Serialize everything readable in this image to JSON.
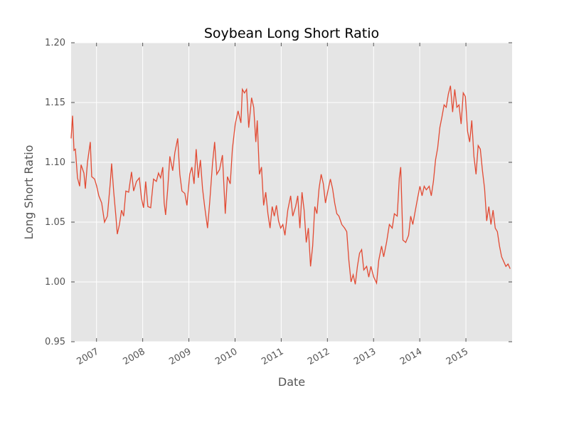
{
  "chart_data": {
    "type": "line",
    "title": "Soybean Long Short Ratio",
    "x_label": "Date",
    "y_label": "Long Short Ratio",
    "color": "#e24a33",
    "grid": true,
    "xlim": [
      2006.45,
      2016.0
    ],
    "xticks": [
      2007,
      2008,
      2009,
      2010,
      2011,
      2012,
      2013,
      2014,
      2015
    ],
    "ylim": [
      0.95,
      1.2
    ],
    "yticks": [
      0.95,
      {
        "value": 1.0,
        "label": "1.00"
      },
      1.05,
      {
        "value": 1.1,
        "label": "1.10"
      },
      1.15,
      {
        "value": 1.2,
        "label": "1.20"
      }
    ],
    "x": [
      2006.45,
      2006.481,
      2006.512,
      2006.542,
      2006.588,
      2006.635,
      2006.665,
      2006.727,
      2006.758,
      2006.804,
      2006.865,
      2006.896,
      2006.958,
      2007.004,
      2007.05,
      2007.112,
      2007.173,
      2007.235,
      2007.296,
      2007.327,
      2007.373,
      2007.419,
      2007.45,
      2007.496,
      2007.542,
      2007.588,
      2007.635,
      2007.696,
      2007.758,
      2007.804,
      2007.865,
      2007.927,
      2007.973,
      2008.019,
      2008.065,
      2008.112,
      2008.173,
      2008.235,
      2008.296,
      2008.342,
      2008.388,
      2008.435,
      2008.465,
      2008.496,
      2008.542,
      2008.588,
      2008.65,
      2008.696,
      2008.758,
      2008.804,
      2008.85,
      2008.912,
      2008.958,
      2009.019,
      2009.065,
      2009.112,
      2009.158,
      2009.204,
      2009.25,
      2009.296,
      2009.342,
      2009.404,
      2009.45,
      2009.512,
      2009.558,
      2009.604,
      2009.665,
      2009.727,
      2009.788,
      2009.835,
      2009.896,
      2009.942,
      2010.004,
      2010.065,
      2010.127,
      2010.158,
      2010.204,
      2010.25,
      2010.296,
      2010.358,
      2010.404,
      2010.45,
      2010.481,
      2010.527,
      2010.573,
      2010.619,
      2010.665,
      2010.712,
      2010.758,
      2010.804,
      2010.85,
      2010.896,
      2010.942,
      2010.988,
      2011.035,
      2011.081,
      2011.142,
      2011.204,
      2011.25,
      2011.312,
      2011.358,
      2011.404,
      2011.45,
      2011.496,
      2011.542,
      2011.588,
      2011.635,
      2011.681,
      2011.727,
      2011.773,
      2011.819,
      2011.865,
      2011.912,
      2011.958,
      2012.004,
      2012.065,
      2012.112,
      2012.158,
      2012.204,
      2012.25,
      2012.312,
      2012.373,
      2012.419,
      2012.465,
      2012.512,
      2012.558,
      2012.604,
      2012.65,
      2012.696,
      2012.742,
      2012.788,
      2012.85,
      2012.896,
      2012.942,
      2013.004,
      2013.065,
      2013.112,
      2013.173,
      2013.219,
      2013.281,
      2013.342,
      2013.404,
      2013.45,
      2013.512,
      2013.558,
      2013.588,
      2013.635,
      2013.696,
      2013.758,
      2013.804,
      2013.85,
      2013.896,
      2013.958,
      2014.004,
      2014.05,
      2014.096,
      2014.142,
      2014.204,
      2014.25,
      2014.296,
      2014.342,
      2014.388,
      2014.435,
      2014.481,
      2014.527,
      2014.573,
      2014.619,
      2014.665,
      2014.712,
      2014.758,
      2014.804,
      2014.85,
      2014.896,
      2014.942,
      2014.988,
      2015.035,
      2015.081,
      2015.127,
      2015.173,
      2015.219,
      2015.265,
      2015.312,
      2015.358,
      2015.404,
      2015.45,
      2015.496,
      2015.542,
      2015.588,
      2015.635,
      2015.681,
      2015.727,
      2015.773,
      2015.819,
      2015.865,
      2015.912,
      2015.958
    ],
    "values": [
      1.12,
      1.139,
      1.11,
      1.111,
      1.087,
      1.08,
      1.098,
      1.091,
      1.078,
      1.1,
      1.117,
      1.088,
      1.086,
      1.08,
      1.072,
      1.066,
      1.05,
      1.055,
      1.082,
      1.099,
      1.075,
      1.055,
      1.04,
      1.048,
      1.06,
      1.055,
      1.076,
      1.075,
      1.092,
      1.076,
      1.084,
      1.087,
      1.07,
      1.062,
      1.084,
      1.063,
      1.062,
      1.086,
      1.084,
      1.091,
      1.087,
      1.096,
      1.066,
      1.056,
      1.078,
      1.105,
      1.093,
      1.108,
      1.12,
      1.09,
      1.076,
      1.074,
      1.064,
      1.09,
      1.096,
      1.082,
      1.111,
      1.087,
      1.102,
      1.078,
      1.063,
      1.045,
      1.066,
      1.099,
      1.117,
      1.09,
      1.094,
      1.106,
      1.057,
      1.088,
      1.082,
      1.111,
      1.132,
      1.143,
      1.133,
      1.161,
      1.158,
      1.161,
      1.129,
      1.154,
      1.146,
      1.117,
      1.135,
      1.09,
      1.096,
      1.064,
      1.075,
      1.057,
      1.045,
      1.063,
      1.055,
      1.064,
      1.051,
      1.045,
      1.048,
      1.039,
      1.06,
      1.072,
      1.055,
      1.063,
      1.072,
      1.045,
      1.075,
      1.06,
      1.033,
      1.045,
      1.013,
      1.03,
      1.063,
      1.057,
      1.078,
      1.09,
      1.082,
      1.066,
      1.075,
      1.086,
      1.078,
      1.066,
      1.057,
      1.055,
      1.048,
      1.045,
      1.042,
      1.018,
      1.0,
      1.006,
      0.998,
      1.013,
      1.024,
      1.027,
      1.01,
      1.013,
      1.004,
      1.013,
      1.004,
      0.999,
      1.018,
      1.03,
      1.021,
      1.033,
      1.048,
      1.045,
      1.057,
      1.055,
      1.087,
      1.096,
      1.035,
      1.033,
      1.039,
      1.055,
      1.048,
      1.058,
      1.071,
      1.08,
      1.072,
      1.08,
      1.077,
      1.08,
      1.072,
      1.084,
      1.102,
      1.112,
      1.129,
      1.138,
      1.148,
      1.146,
      1.157,
      1.164,
      1.142,
      1.161,
      1.146,
      1.148,
      1.132,
      1.158,
      1.155,
      1.126,
      1.117,
      1.135,
      1.105,
      1.09,
      1.114,
      1.111,
      1.093,
      1.078,
      1.051,
      1.063,
      1.048,
      1.06,
      1.045,
      1.042,
      1.03,
      1.021,
      1.017,
      1.013,
      1.015,
      1.011
    ]
  }
}
